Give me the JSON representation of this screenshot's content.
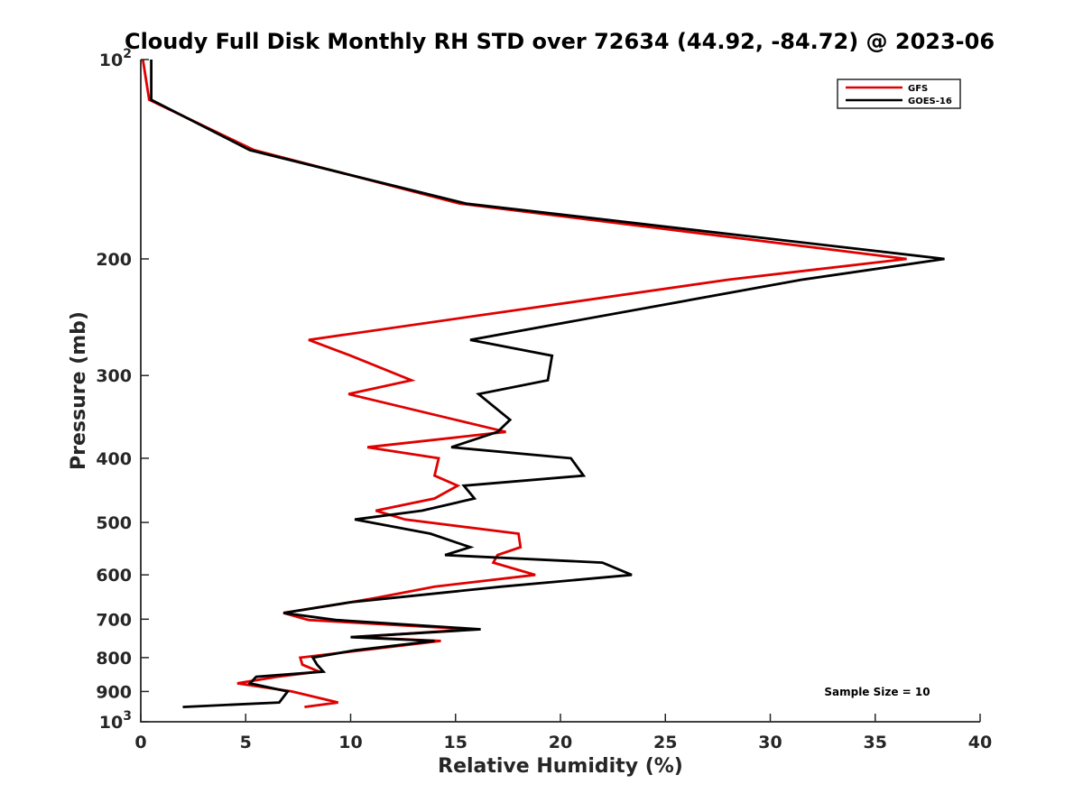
{
  "chart_data": {
    "type": "line",
    "title": "Cloudy Full Disk Monthly RH STD over 72634 (44.92, -84.72) @ 2023-06",
    "xlabel": "Relative Humidity (%)",
    "ylabel": "Pressure (mb)",
    "xlim": [
      0,
      40
    ],
    "ylim": [
      100,
      1000
    ],
    "y_scale": "log",
    "y_reversed": true,
    "grid": false,
    "legend_position": "top-right",
    "x_ticks": [
      0,
      5,
      10,
      15,
      20,
      25,
      30,
      35,
      40
    ],
    "x_tick_labels": [
      "0",
      "5",
      "10",
      "15",
      "20",
      "25",
      "30",
      "35",
      "40"
    ],
    "y_ticks": [
      100,
      200,
      300,
      400,
      500,
      600,
      700,
      800,
      900,
      1000
    ],
    "y_tick_labels": [
      {
        "base": "10",
        "exp": "2"
      },
      {
        "base": "200",
        "exp": ""
      },
      {
        "base": "300",
        "exp": ""
      },
      {
        "base": "400",
        "exp": ""
      },
      {
        "base": "500",
        "exp": ""
      },
      {
        "base": "600",
        "exp": ""
      },
      {
        "base": "700",
        "exp": ""
      },
      {
        "base": "800",
        "exp": ""
      },
      {
        "base": "900",
        "exp": ""
      },
      {
        "base": "10",
        "exp": "3"
      }
    ],
    "annotation": "Sample Size = 10",
    "series": [
      {
        "name": "GFS",
        "color": "#e00000",
        "points": [
          [
            0.1,
            100
          ],
          [
            0.4,
            115
          ],
          [
            5.4,
            137
          ],
          [
            15.2,
            165
          ],
          [
            36.5,
            200
          ],
          [
            28.0,
            215
          ],
          [
            8.0,
            265
          ],
          [
            10.0,
            280
          ],
          [
            12.9,
            305
          ],
          [
            9.9,
            320
          ],
          [
            15.0,
            350
          ],
          [
            17.4,
            365
          ],
          [
            10.8,
            385
          ],
          [
            14.2,
            400
          ],
          [
            14.0,
            425
          ],
          [
            15.1,
            440
          ],
          [
            14.0,
            460
          ],
          [
            11.2,
            480
          ],
          [
            12.6,
            495
          ],
          [
            18.0,
            520
          ],
          [
            18.1,
            545
          ],
          [
            17.0,
            560
          ],
          [
            16.8,
            575
          ],
          [
            18.8,
            600
          ],
          [
            14.0,
            625
          ],
          [
            11.2,
            650
          ],
          [
            10.0,
            660
          ],
          [
            6.8,
            685
          ],
          [
            8.0,
            702
          ],
          [
            15.8,
            725
          ],
          [
            10.2,
            745
          ],
          [
            14.3,
            755
          ],
          [
            10.5,
            780
          ],
          [
            7.6,
            800
          ],
          [
            7.7,
            820
          ],
          [
            8.5,
            840
          ],
          [
            6.5,
            855
          ],
          [
            4.6,
            875
          ],
          [
            7.2,
            900
          ],
          [
            9.4,
            935
          ],
          [
            7.8,
            950
          ]
        ]
      },
      {
        "name": "GOES-16",
        "color": "#000000",
        "points": [
          [
            0.5,
            100
          ],
          [
            0.5,
            115
          ],
          [
            5.2,
            137
          ],
          [
            15.5,
            165
          ],
          [
            38.3,
            200
          ],
          [
            31.5,
            215
          ],
          [
            15.7,
            265
          ],
          [
            19.6,
            280
          ],
          [
            19.4,
            305
          ],
          [
            16.1,
            320
          ],
          [
            17.6,
            350
          ],
          [
            17.0,
            365
          ],
          [
            14.8,
            385
          ],
          [
            20.5,
            400
          ],
          [
            21.1,
            425
          ],
          [
            15.4,
            440
          ],
          [
            15.9,
            460
          ],
          [
            13.4,
            480
          ],
          [
            10.2,
            495
          ],
          [
            13.8,
            520
          ],
          [
            15.7,
            545
          ],
          [
            14.5,
            560
          ],
          [
            22.0,
            575
          ],
          [
            23.4,
            600
          ],
          [
            17.2,
            625
          ],
          [
            12.0,
            650
          ],
          [
            10.0,
            660
          ],
          [
            6.8,
            685
          ],
          [
            9.3,
            702
          ],
          [
            16.2,
            725
          ],
          [
            10.0,
            745
          ],
          [
            14.0,
            755
          ],
          [
            10.2,
            780
          ],
          [
            8.2,
            800
          ],
          [
            8.4,
            820
          ],
          [
            8.7,
            840
          ],
          [
            5.5,
            855
          ],
          [
            5.2,
            875
          ],
          [
            7.0,
            900
          ],
          [
            6.6,
            935
          ],
          [
            2.0,
            950
          ]
        ]
      }
    ]
  }
}
